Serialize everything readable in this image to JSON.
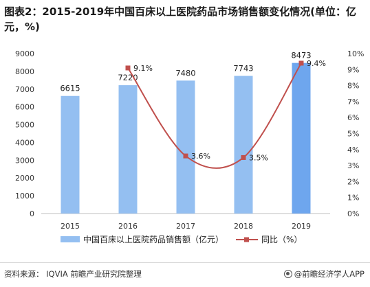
{
  "title": "图表2：2015-2019年中国百床以上医院药品市场销售额变化情况(单位：亿元，%)",
  "footer": {
    "source": "资料来源：  IQVIA 前瞻产业研究院整理",
    "brand": "@前瞻经济学人APP"
  },
  "colors": {
    "bar": "#94bff1",
    "bar_last": "#6ea6ee",
    "line": "#c0504d",
    "marker": "#c0504d"
  },
  "chart_data": {
    "type": "bar",
    "categories": [
      "2015",
      "2016",
      "2017",
      "2018",
      "2019"
    ],
    "series": [
      {
        "name": "中国百床以上医院药品销售额（亿元）",
        "type": "bar",
        "axis": "left",
        "values": [
          6615,
          7220,
          7480,
          7743,
          8473
        ]
      },
      {
        "name": "同比（%）",
        "type": "line",
        "axis": "right",
        "values": [
          null,
          9.1,
          3.6,
          3.5,
          9.4
        ],
        "labels": [
          "",
          "9.1%",
          "3.6%",
          "3.5%",
          "9.4%"
        ]
      }
    ],
    "left_axis": {
      "min": 0,
      "max": 9000,
      "ticks": [
        "0",
        "1000",
        "2000",
        "3000",
        "4000",
        "5000",
        "6000",
        "7000",
        "8000",
        "9000"
      ]
    },
    "right_axis": {
      "min": 0,
      "max": 10,
      "ticks": [
        "0%",
        "1%",
        "2%",
        "3%",
        "4%",
        "5%",
        "6%",
        "7%",
        "8%",
        "9%",
        "10%"
      ]
    },
    "legend_position": "bottom",
    "grid": false
  }
}
